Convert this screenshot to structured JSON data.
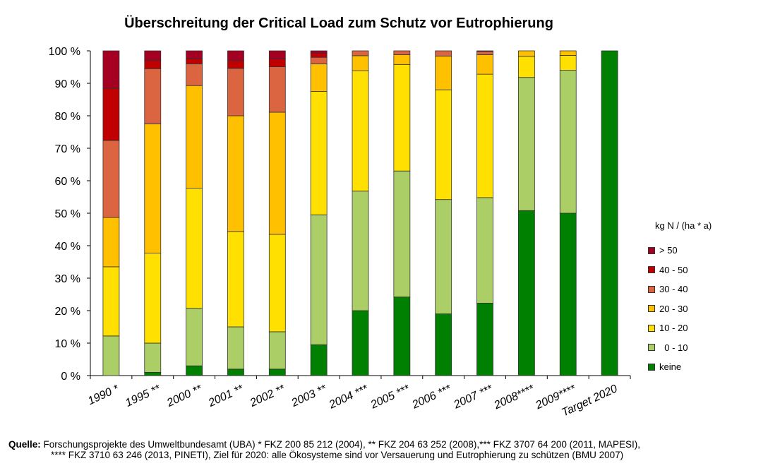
{
  "chart_data": {
    "type": "bar",
    "stacked": true,
    "title": "Überschreitung der Critical Load zum Schutz vor Eutrophierung",
    "xlabel": "",
    "ylabel": "",
    "ylim": [
      0,
      100
    ],
    "yticks": [
      "0 %",
      "10 %",
      "20 %",
      "30 %",
      "40 %",
      "50 %",
      "60 %",
      "70 %",
      "80 %",
      "90 %",
      "100 %"
    ],
    "categories": [
      "1990 *",
      "1995 **",
      "2000 **",
      "2001 **",
      "2002 **",
      "2003 **",
      "2004 ***",
      "2005 ***",
      "2006 ***",
      "2007 ***",
      "2008****",
      "2009****",
      "Target 2020"
    ],
    "legend_title": "kg N / (ha * a)",
    "legend_position": "right",
    "series": [
      {
        "name": "keine",
        "color": "#008000",
        "values": [
          0,
          1,
          3,
          2,
          2,
          9.5,
          20,
          24.2,
          19,
          22.3,
          50.8,
          50,
          100
        ]
      },
      {
        "name": "  0 - 10",
        "color": "#ABCE66",
        "values": [
          12.2,
          9,
          17.7,
          13,
          11.5,
          40,
          36.8,
          38.8,
          35.2,
          32.5,
          41,
          44,
          0
        ]
      },
      {
        "name": "10 - 20",
        "color": "#FFE000",
        "values": [
          21.3,
          27.7,
          37,
          29.4,
          30,
          38,
          37.1,
          32.8,
          33.8,
          38,
          6.5,
          4.6,
          0
        ]
      },
      {
        "name": "20 - 30",
        "color": "#FFC000",
        "values": [
          15.2,
          39.8,
          31.6,
          35.6,
          37.6,
          8.5,
          4.6,
          3,
          10.4,
          6,
          1.7,
          1.4,
          0
        ]
      },
      {
        "name": "30 - 40",
        "color": "#DC6541",
        "values": [
          23.7,
          17,
          6.7,
          14.6,
          14,
          2,
          1.5,
          1.2,
          1.6,
          1,
          0,
          0,
          0
        ]
      },
      {
        "name": "40 - 50",
        "color": "#C00000",
        "values": [
          16,
          2.5,
          1.5,
          2.4,
          2.4,
          1.2,
          0,
          0,
          0,
          0.2,
          0,
          0,
          0
        ]
      },
      {
        "name": "> 50",
        "color": "#A50021",
        "values": [
          11.6,
          3,
          2.5,
          3,
          2.5,
          0.8,
          0,
          0,
          0,
          0,
          0,
          0,
          0
        ]
      }
    ]
  },
  "source": {
    "label": "Quelle:",
    "line1": "Forschungsprojekte des Umweltbundesamt (UBA) * FKZ 200 85 212 (2004), ** FKZ 204 63 252 (2008),*** FKZ 3707 64 200 (2011, MAPESI),",
    "line2": "**** FKZ 3710 63 246 (2013, PINETI), Ziel für 2020: alle Ökosysteme sind vor Versauerung und Eutrophierung zu schützen (BMU 2007)"
  }
}
